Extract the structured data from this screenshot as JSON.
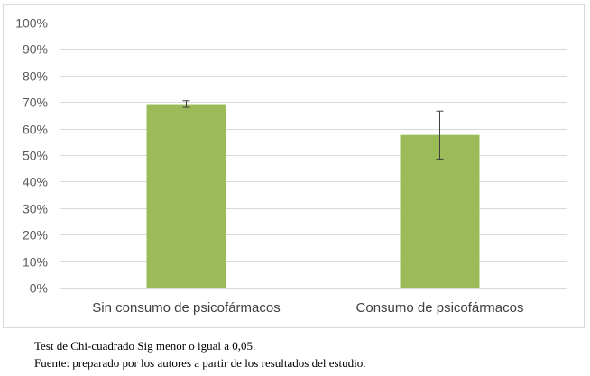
{
  "chart_data": {
    "type": "bar",
    "categories": [
      "Sin consumo de psicofármacos",
      "Consumo de psicofármacos"
    ],
    "values": [
      69.2,
      57.6
    ],
    "error_low": [
      68.0,
      48.5
    ],
    "error_high": [
      70.5,
      66.6
    ],
    "ylim": [
      0,
      100
    ],
    "yticks": [
      "0%",
      "10%",
      "20%",
      "30%",
      "40%",
      "50%",
      "60%",
      "70%",
      "80%",
      "90%",
      "100%"
    ],
    "grid": true,
    "legend": "none"
  },
  "colors": {
    "bar": "#9bbb59",
    "grid": "#d9d9d9",
    "error_bar": "#404040"
  },
  "notes": {
    "line1": "Test de Chi-cuadrado Sig menor o igual a 0,05.",
    "line2": "Fuente: preparado por los autores a partir de los resultados del estudio."
  }
}
